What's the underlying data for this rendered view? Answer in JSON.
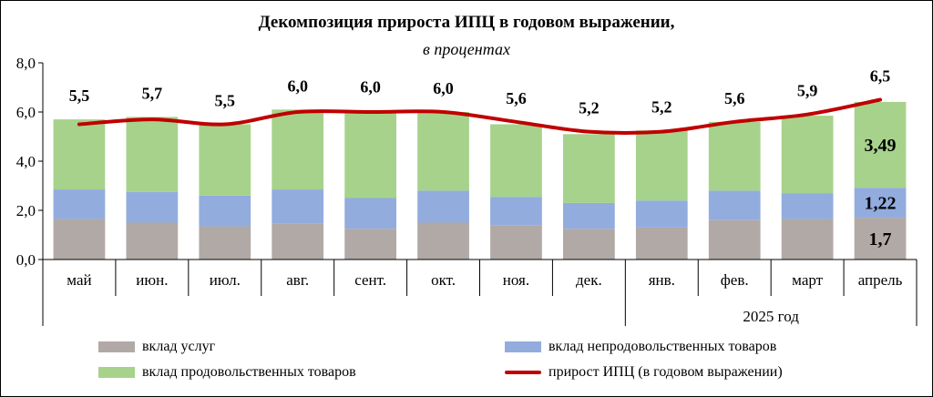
{
  "chart_data": {
    "type": "bar",
    "title": "Декомпозиция прироста ИПЦ  в годовом выражении,",
    "subtitle": "в процентах",
    "categories": [
      "май",
      "июн.",
      "июл.",
      "авг.",
      "сент.",
      "окт.",
      "ноя.",
      "дек.",
      "янв.",
      "фев.",
      "март",
      "апрель"
    ],
    "group_label": "2025 год",
    "ylim": [
      0,
      8
    ],
    "yticks": [
      "0,0",
      "2,0",
      "4,0",
      "6,0",
      "8,0"
    ],
    "stacked": true,
    "series": [
      {
        "name": "вклад услуг",
        "color": "#b1a9a6",
        "values": [
          1.65,
          1.5,
          1.35,
          1.45,
          1.25,
          1.5,
          1.4,
          1.25,
          1.3,
          1.6,
          1.65,
          1.7
        ]
      },
      {
        "name": "вклад непродовольственных товаров",
        "color": "#92acde",
        "values": [
          1.2,
          1.25,
          1.25,
          1.4,
          1.25,
          1.3,
          1.15,
          1.05,
          1.1,
          1.2,
          1.05,
          1.22
        ]
      },
      {
        "name": "вклад продовольственных товаров",
        "color": "#a7d28c",
        "values": [
          2.85,
          3.05,
          2.9,
          3.25,
          3.55,
          3.2,
          2.95,
          2.8,
          2.85,
          2.8,
          3.15,
          3.49
        ]
      },
      {
        "name": "прирост ИПЦ (в годовом выражении)",
        "color": "#c00000",
        "type": "line",
        "values": [
          5.5,
          5.7,
          5.5,
          6.0,
          6.0,
          6.0,
          5.6,
          5.2,
          5.2,
          5.6,
          5.9,
          6.5
        ]
      }
    ],
    "line_labels": [
      "5,5",
      "5,7",
      "5,5",
      "6,0",
      "6,0",
      "6,0",
      "5,6",
      "5,2",
      "5,2",
      "5,6",
      "5,9",
      "6,5"
    ],
    "segment_labels": [
      {
        "category_index": 11,
        "series_index": 0,
        "text": "1,7"
      },
      {
        "category_index": 11,
        "series_index": 1,
        "text": "1,22"
      },
      {
        "category_index": 11,
        "series_index": 2,
        "text": "3,49"
      }
    ],
    "grid": false,
    "legend_position": "bottom"
  }
}
